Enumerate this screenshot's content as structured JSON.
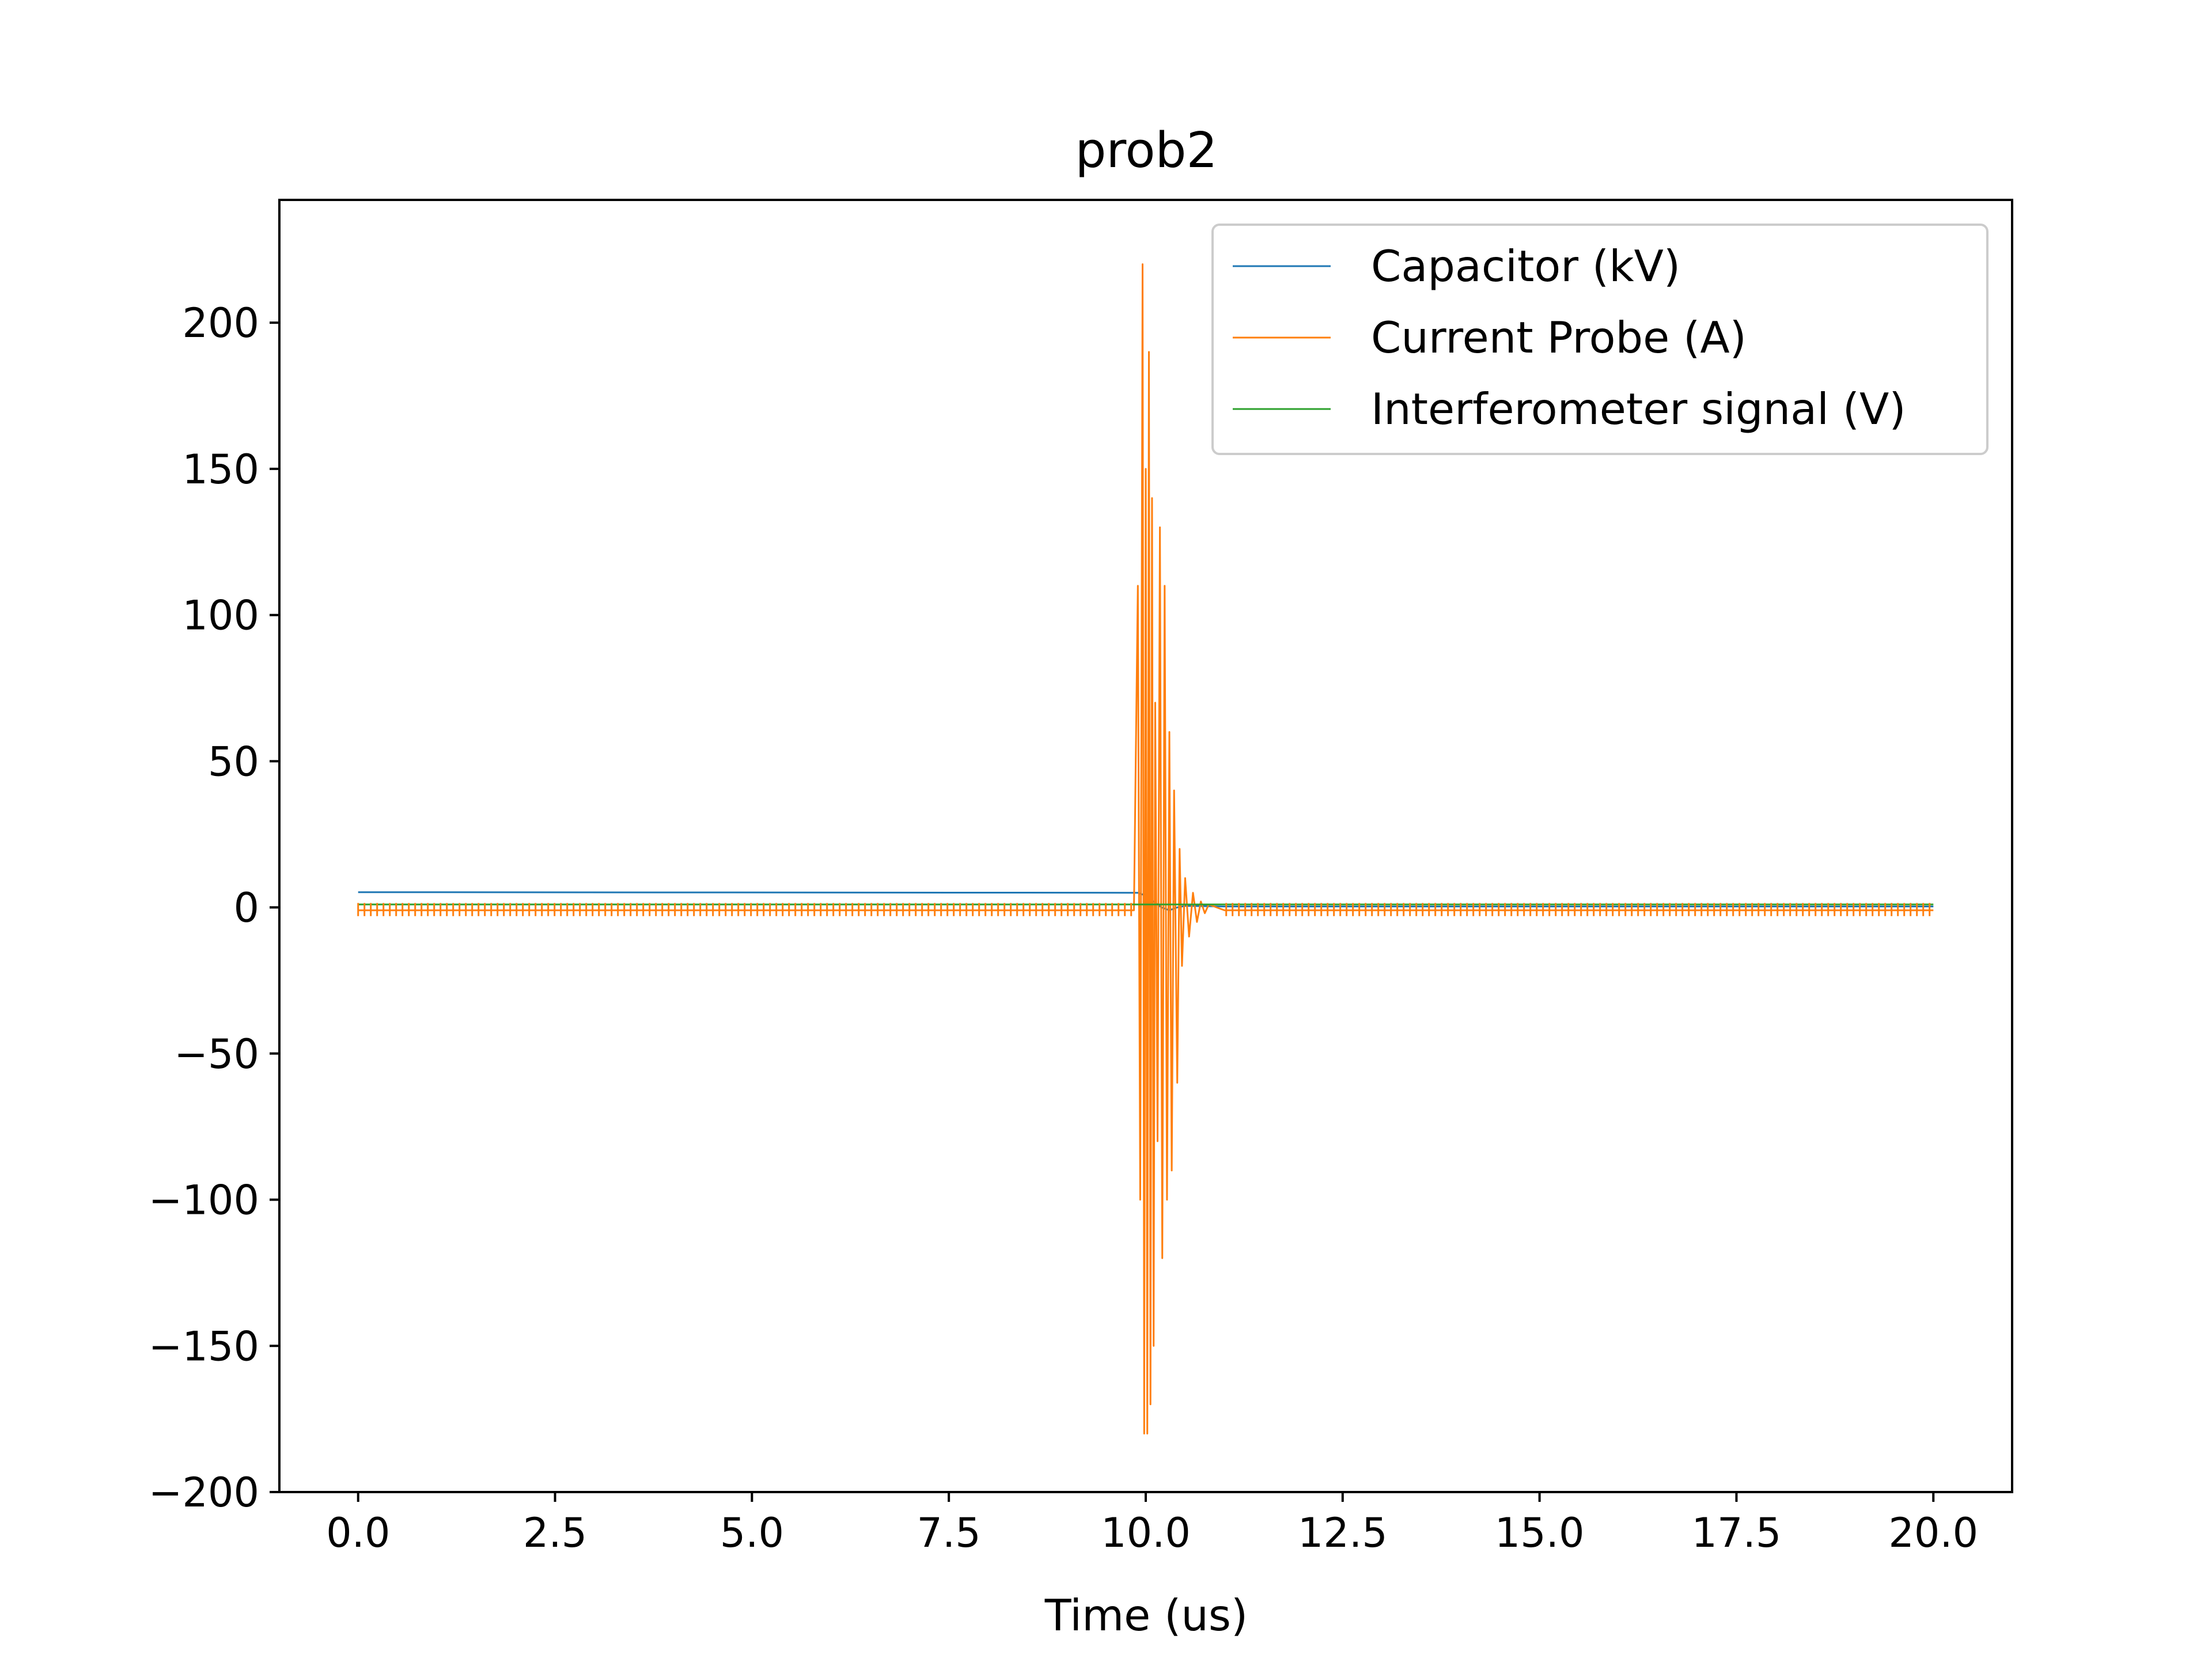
{
  "chart_data": {
    "type": "line",
    "title": "prob2",
    "xlabel": "Time (us)",
    "ylabel": "",
    "xlim": [
      -1.0,
      21.0
    ],
    "ylim": [
      -200,
      242
    ],
    "x_ticks": [
      0.0,
      2.5,
      5.0,
      7.5,
      10.0,
      12.5,
      15.0,
      17.5,
      20.0
    ],
    "x_tick_labels": [
      "0.0",
      "2.5",
      "5.0",
      "7.5",
      "10.0",
      "12.5",
      "15.0",
      "17.5",
      "20.0"
    ],
    "y_ticks": [
      -200,
      -150,
      -100,
      -50,
      0,
      50,
      100,
      150,
      200
    ],
    "y_tick_labels": [
      "−200",
      "−150",
      "−100",
      "−50",
      "0",
      "50",
      "100",
      "150",
      "200"
    ],
    "grid": false,
    "legend_position": "top-right",
    "series": [
      {
        "name": "Capacitor (kV)",
        "color": "#1f77b4",
        "x": [
          0.0,
          9.9,
          10.0,
          10.1,
          10.2,
          10.3,
          10.4,
          10.5,
          11.0,
          20.0
        ],
        "y": [
          5.2,
          5.0,
          4.0,
          2.0,
          0.0,
          -1.0,
          0.0,
          0.5,
          0.3,
          0.3
        ]
      },
      {
        "name": "Current Probe (A)",
        "color": "#ff7f0e",
        "x": [
          0.0,
          9.85,
          9.9,
          9.93,
          9.96,
          9.98,
          10.0,
          10.02,
          10.04,
          10.06,
          10.08,
          10.1,
          10.12,
          10.15,
          10.18,
          10.21,
          10.24,
          10.27,
          10.3,
          10.33,
          10.36,
          10.4,
          10.43,
          10.46,
          10.5,
          10.55,
          10.6,
          10.65,
          10.7,
          10.75,
          10.8,
          10.9,
          11.0,
          20.0
        ],
        "y": [
          -1,
          -1,
          110,
          -100,
          220,
          -180,
          150,
          -180,
          190,
          -170,
          140,
          -150,
          70,
          -80,
          130,
          -120,
          110,
          -100,
          60,
          -90,
          40,
          -60,
          20,
          -20,
          10,
          -10,
          5,
          -5,
          2,
          -2,
          1,
          0,
          -1,
          -1
        ]
      },
      {
        "name": "Interferometer signal (V)",
        "color": "#2ca02c",
        "x": [
          0.0,
          20.0
        ],
        "y": [
          1.0,
          1.0
        ]
      }
    ]
  }
}
